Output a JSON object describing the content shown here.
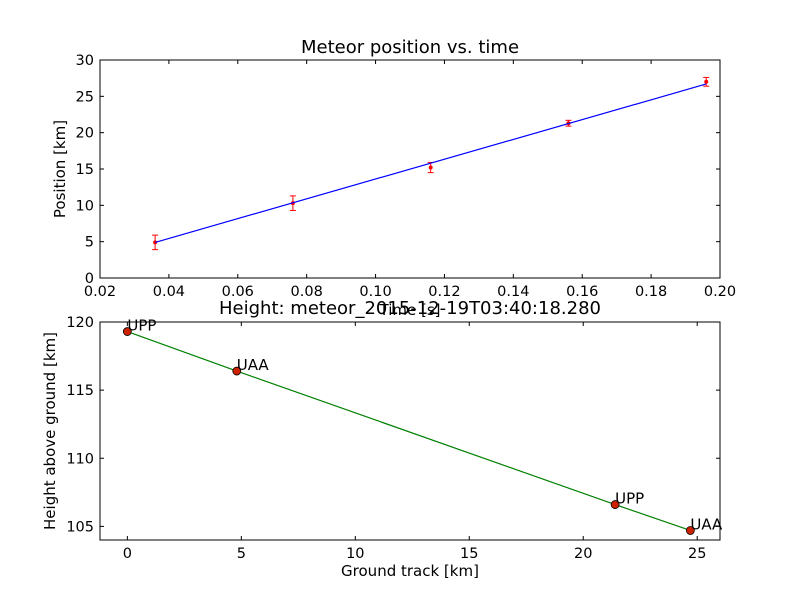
{
  "chart_data": [
    {
      "type": "scatter",
      "title": "Meteor position vs. time",
      "xlabel": "Time [s]",
      "ylabel": "Position [km]",
      "xlim": [
        0.02,
        0.2
      ],
      "ylim": [
        0,
        30
      ],
      "xticks": [
        "0.02",
        "0.04",
        "0.06",
        "0.08",
        "0.10",
        "0.12",
        "0.14",
        "0.16",
        "0.18",
        "0.20"
      ],
      "yticks": [
        "0",
        "5",
        "10",
        "15",
        "20",
        "25",
        "30"
      ],
      "grid": false,
      "series": [
        {
          "kind": "errorbar",
          "color": "#ff0000",
          "x": [
            0.036,
            0.076,
            0.116,
            0.156,
            0.196
          ],
          "y": [
            4.9,
            10.3,
            15.2,
            21.3,
            27.0
          ],
          "yerr": [
            1.0,
            1.0,
            0.7,
            0.4,
            0.6
          ]
        },
        {
          "kind": "fit-line",
          "color": "#0000ff",
          "x": [
            0.036,
            0.196
          ],
          "y": [
            4.9,
            26.7
          ]
        }
      ]
    },
    {
      "type": "line",
      "title": "Height: meteor_2015-12-19T03:40:18.280",
      "xlabel": "Ground track [km]",
      "ylabel": "Height above ground [km]",
      "xlim": [
        -1.2,
        26
      ],
      "ylim": [
        104,
        120
      ],
      "xticks": [
        "0",
        "5",
        "10",
        "15",
        "20",
        "25"
      ],
      "yticks": [
        "105",
        "110",
        "115",
        "120"
      ],
      "grid": false,
      "series": [
        {
          "kind": "line-with-markers",
          "color": "#008000",
          "marker_color": "#cc2200",
          "x": [
            0.0,
            4.8,
            21.4,
            24.7
          ],
          "y": [
            119.3,
            116.4,
            106.6,
            104.7
          ],
          "labels": [
            "UPP",
            "UAA",
            "UPP",
            "UAA"
          ]
        }
      ]
    }
  ]
}
